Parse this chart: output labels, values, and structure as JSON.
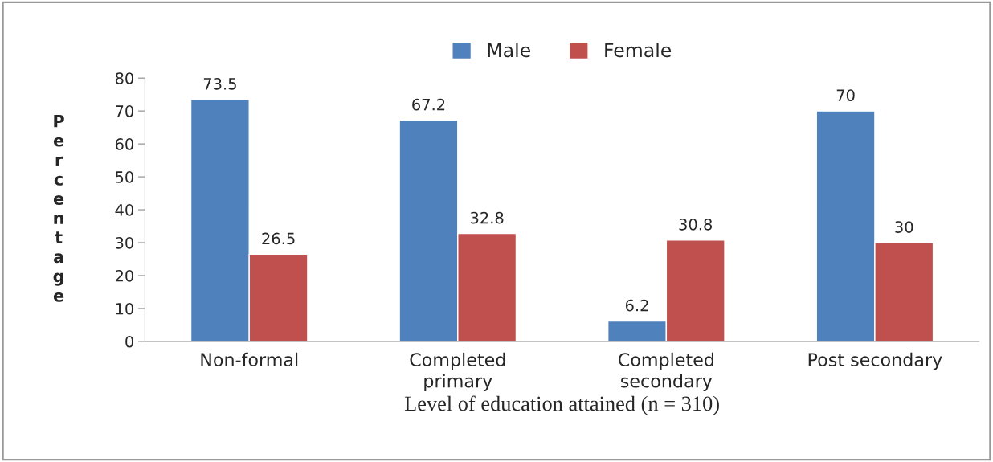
{
  "chart_data": {
    "type": "bar",
    "categories": [
      "Non-formal",
      "Completed\nprimary",
      "Completed\nsecondary",
      "Post secondary"
    ],
    "series": [
      {
        "name": "Male",
        "color": "#4f81bd",
        "values": [
          73.5,
          67.2,
          6.2,
          70
        ]
      },
      {
        "name": "Female",
        "color": "#c0504d",
        "values": [
          26.5,
          32.8,
          30.8,
          30
        ]
      }
    ],
    "xlabel": "Level of education attained (n = 310)",
    "ylabel": "Percentage",
    "ylim": [
      0,
      80
    ],
    "yticks": [
      0,
      10,
      20,
      30,
      40,
      50,
      60,
      70,
      80
    ],
    "data_labels": true,
    "grid": false,
    "legend": "top"
  }
}
